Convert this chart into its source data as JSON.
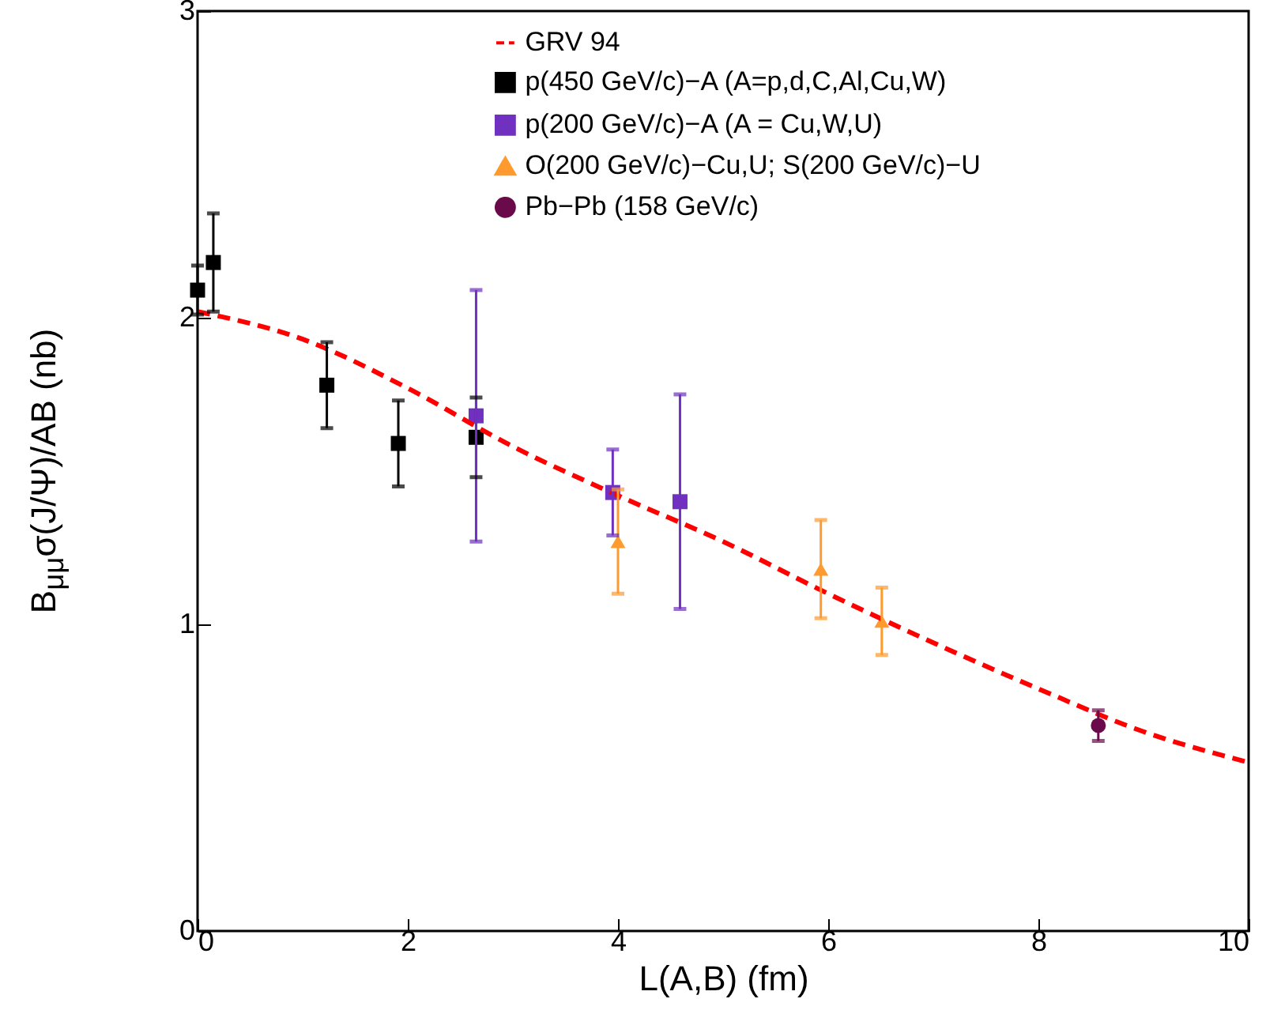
{
  "chart_data": {
    "type": "scatter",
    "xlabel": "L(A,B) (fm)",
    "ylabel": "B$_{μμ}$σ(J/Ψ)/AB (nb)",
    "xlim": [
      0,
      10
    ],
    "xticks": [
      0,
      2,
      4,
      6,
      8,
      {
        "value": 10,
        "label": "10"
      }
    ],
    "ylim": [
      0,
      3
    ],
    "yticks": [
      0,
      1,
      2,
      3
    ],
    "grid": false,
    "legend": "top right",
    "series": [
      {
        "name": "GRV 94",
        "type": "line",
        "color": "#ff0000",
        "line_style": "dashed",
        "marker": "none",
        "x": [
          0,
          1,
          2,
          3,
          4,
          5,
          6,
          7,
          8,
          9,
          10
        ],
        "values": [
          2.02,
          1.93,
          1.77,
          1.58,
          1.42,
          1.27,
          1.1,
          0.94,
          0.79,
          0.65,
          0.55
        ]
      },
      {
        "name": "p(450 GeV/c)−A (A=p,d,C,Al,Cu,W)",
        "type": "scatter",
        "color": "#000000",
        "marker": "square",
        "x": [
          0.0,
          0.15,
          1.23,
          1.91,
          2.65
        ],
        "values": [
          2.09,
          2.18,
          1.78,
          1.59,
          1.61
        ],
        "errors": [
          0.08,
          0.16,
          0.14,
          0.14,
          0.13
        ]
      },
      {
        "name": "p(200 GeV/c)−A (A = Cu,W,U)",
        "type": "scatter",
        "color": "#7030c0",
        "marker": "square",
        "x": [
          2.65,
          3.95,
          4.59
        ],
        "values": [
          1.68,
          1.43,
          1.4
        ],
        "errors": [
          0.41,
          0.14,
          0.35
        ]
      },
      {
        "name": "O(200 GeV/c)−Cu,U; S(200 GeV/c)−U",
        "type": "scatter",
        "color": "#ff9a2e",
        "marker": "triangle",
        "x": [
          4.0,
          5.93,
          6.51
        ],
        "values": [
          1.27,
          1.18,
          1.01
        ],
        "errors": [
          0.17,
          0.16,
          0.11
        ]
      },
      {
        "name": "Pb−Pb (158 GeV/c)",
        "type": "scatter",
        "color": "#6b0a4a",
        "marker": "circle",
        "x": [
          8.57
        ],
        "values": [
          0.67
        ],
        "errors": [
          0.05
        ]
      }
    ]
  }
}
